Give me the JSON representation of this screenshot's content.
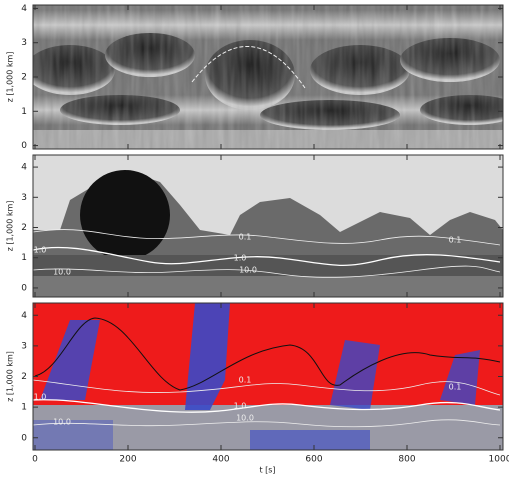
{
  "chart_data": [
    {
      "type": "image",
      "ylabel": "z [1,000 km]",
      "ylim": [
        -0.1,
        4.1
      ],
      "yticks": [
        0,
        1,
        2,
        3,
        4
      ],
      "colormap": "gray"
    },
    {
      "type": "image",
      "ylabel": "z [1,000 km]",
      "ylim": [
        -0.3,
        4.4
      ],
      "yticks": [
        0,
        1,
        2,
        3,
        4
      ],
      "colormap": "gray",
      "contour_labels": [
        "1.0",
        "10.0",
        "0.1",
        "1.0",
        "10.0",
        "0.1"
      ]
    },
    {
      "type": "image",
      "ylabel": "z [1,000 km]",
      "ylim": [
        -0.4,
        4.4
      ],
      "yticks": [
        0,
        1,
        2,
        3,
        4
      ],
      "colormap": "red-blue",
      "contour_labels": [
        "1.0",
        "10.0",
        "0.1",
        "1.0",
        "10.0",
        "0.1"
      ],
      "xlabel": "t [s]",
      "xlim": [
        0,
        1000
      ],
      "xticks": [
        0,
        200,
        400,
        600,
        800,
        1000
      ]
    }
  ]
}
